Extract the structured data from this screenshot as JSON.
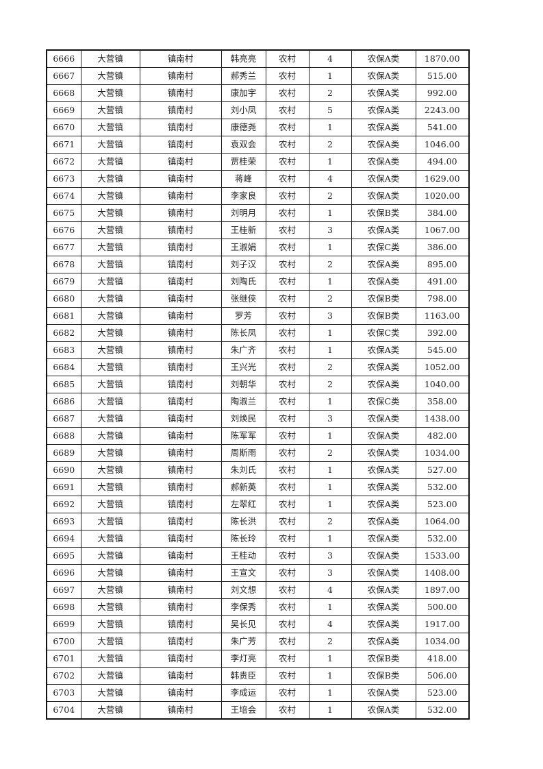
{
  "rows": [
    [
      "6666",
      "大营镇",
      "镇南村",
      "韩亮亮",
      "农村",
      "4",
      "农保A类",
      "1870.00"
    ],
    [
      "6667",
      "大营镇",
      "镇南村",
      "郝秀兰",
      "农村",
      "1",
      "农保A类",
      "515.00"
    ],
    [
      "6668",
      "大营镇",
      "镇南村",
      "康加宇",
      "农村",
      "2",
      "农保A类",
      "992.00"
    ],
    [
      "6669",
      "大营镇",
      "镇南村",
      "刘小凤",
      "农村",
      "5",
      "农保A类",
      "2243.00"
    ],
    [
      "6670",
      "大营镇",
      "镇南村",
      "康德尧",
      "农村",
      "1",
      "农保A类",
      "541.00"
    ],
    [
      "6671",
      "大营镇",
      "镇南村",
      "袁双会",
      "农村",
      "2",
      "农保A类",
      "1046.00"
    ],
    [
      "6672",
      "大营镇",
      "镇南村",
      "贾桂荣",
      "农村",
      "1",
      "农保A类",
      "494.00"
    ],
    [
      "6673",
      "大营镇",
      "镇南村",
      "蒋峰",
      "农村",
      "4",
      "农保A类",
      "1629.00"
    ],
    [
      "6674",
      "大营镇",
      "镇南村",
      "李家良",
      "农村",
      "2",
      "农保A类",
      "1020.00"
    ],
    [
      "6675",
      "大营镇",
      "镇南村",
      "刘明月",
      "农村",
      "1",
      "农保B类",
      "384.00"
    ],
    [
      "6676",
      "大营镇",
      "镇南村",
      "王桂新",
      "农村",
      "3",
      "农保A类",
      "1067.00"
    ],
    [
      "6677",
      "大营镇",
      "镇南村",
      "王淑娟",
      "农村",
      "1",
      "农保C类",
      "386.00"
    ],
    [
      "6678",
      "大营镇",
      "镇南村",
      "刘子汉",
      "农村",
      "2",
      "农保A类",
      "895.00"
    ],
    [
      "6679",
      "大营镇",
      "镇南村",
      "刘陶氏",
      "农村",
      "1",
      "农保A类",
      "491.00"
    ],
    [
      "6680",
      "大营镇",
      "镇南村",
      "张继侠",
      "农村",
      "2",
      "农保B类",
      "798.00"
    ],
    [
      "6681",
      "大营镇",
      "镇南村",
      "罗芳",
      "农村",
      "3",
      "农保B类",
      "1163.00"
    ],
    [
      "6682",
      "大营镇",
      "镇南村",
      "陈长凤",
      "农村",
      "1",
      "农保C类",
      "392.00"
    ],
    [
      "6683",
      "大营镇",
      "镇南村",
      "朱广齐",
      "农村",
      "1",
      "农保A类",
      "545.00"
    ],
    [
      "6684",
      "大营镇",
      "镇南村",
      "王兴光",
      "农村",
      "2",
      "农保A类",
      "1052.00"
    ],
    [
      "6685",
      "大营镇",
      "镇南村",
      "刘朝华",
      "农村",
      "2",
      "农保A类",
      "1040.00"
    ],
    [
      "6686",
      "大营镇",
      "镇南村",
      "陶淑兰",
      "农村",
      "1",
      "农保C类",
      "358.00"
    ],
    [
      "6687",
      "大营镇",
      "镇南村",
      "刘焕民",
      "农村",
      "3",
      "农保A类",
      "1438.00"
    ],
    [
      "6688",
      "大营镇",
      "镇南村",
      "陈军军",
      "农村",
      "1",
      "农保A类",
      "482.00"
    ],
    [
      "6689",
      "大营镇",
      "镇南村",
      "周斯雨",
      "农村",
      "2",
      "农保A类",
      "1034.00"
    ],
    [
      "6690",
      "大营镇",
      "镇南村",
      "朱刘氏",
      "农村",
      "1",
      "农保A类",
      "527.00"
    ],
    [
      "6691",
      "大营镇",
      "镇南村",
      "郝新英",
      "农村",
      "1",
      "农保A类",
      "532.00"
    ],
    [
      "6692",
      "大营镇",
      "镇南村",
      "左翠红",
      "农村",
      "1",
      "农保A类",
      "523.00"
    ],
    [
      "6693",
      "大营镇",
      "镇南村",
      "陈长洪",
      "农村",
      "2",
      "农保A类",
      "1064.00"
    ],
    [
      "6694",
      "大营镇",
      "镇南村",
      "陈长玲",
      "农村",
      "1",
      "农保A类",
      "532.00"
    ],
    [
      "6695",
      "大营镇",
      "镇南村",
      "王桂动",
      "农村",
      "3",
      "农保A类",
      "1533.00"
    ],
    [
      "6696",
      "大营镇",
      "镇南村",
      "王宣文",
      "农村",
      "3",
      "农保A类",
      "1408.00"
    ],
    [
      "6697",
      "大营镇",
      "镇南村",
      "刘文想",
      "农村",
      "4",
      "农保A类",
      "1897.00"
    ],
    [
      "6698",
      "大营镇",
      "镇南村",
      "李保秀",
      "农村",
      "1",
      "农保A类",
      "500.00"
    ],
    [
      "6699",
      "大营镇",
      "镇南村",
      "吴长见",
      "农村",
      "4",
      "农保A类",
      "1917.00"
    ],
    [
      "6700",
      "大营镇",
      "镇南村",
      "朱广芳",
      "农村",
      "2",
      "农保A类",
      "1034.00"
    ],
    [
      "6701",
      "大营镇",
      "镇南村",
      "李灯亮",
      "农村",
      "1",
      "农保B类",
      "418.00"
    ],
    [
      "6702",
      "大营镇",
      "镇南村",
      "韩贵臣",
      "农村",
      "1",
      "农保B类",
      "506.00"
    ],
    [
      "6703",
      "大营镇",
      "镇南村",
      "李成运",
      "农村",
      "1",
      "农保A类",
      "523.00"
    ],
    [
      "6704",
      "大营镇",
      "镇南村",
      "王培会",
      "农村",
      "1",
      "农保A类",
      "532.00"
    ]
  ]
}
